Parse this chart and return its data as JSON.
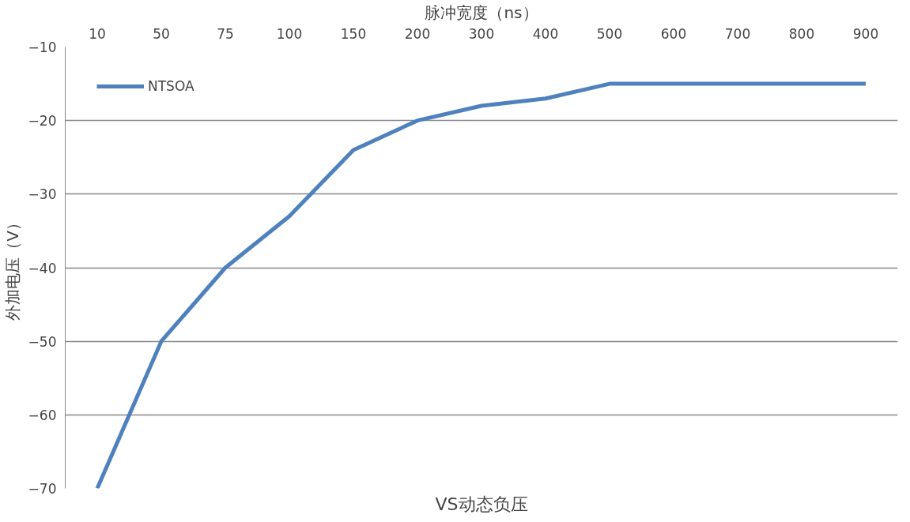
{
  "chart_data": {
    "type": "line",
    "title": "VS动态负压",
    "xlabel": "脉冲宽度（ns）",
    "ylabel": "外加电压（V）",
    "categories": [
      "10",
      "50",
      "75",
      "100",
      "150",
      "200",
      "300",
      "400",
      "500",
      "600",
      "700",
      "800",
      "900"
    ],
    "series": [
      {
        "name": "NTSOA",
        "color": "#4f81bd",
        "values": [
          -70,
          -50,
          -40,
          -33,
          -24,
          -20,
          -18,
          -17,
          -15,
          -15,
          -15,
          -15,
          -15
        ]
      }
    ],
    "ylim": [
      -70,
      -10
    ],
    "yticks": [
      -70,
      -60,
      -50,
      -40,
      -30,
      -20,
      -10
    ],
    "grid": "y",
    "legend": "top left",
    "marker": "none",
    "line_style": "solid"
  }
}
